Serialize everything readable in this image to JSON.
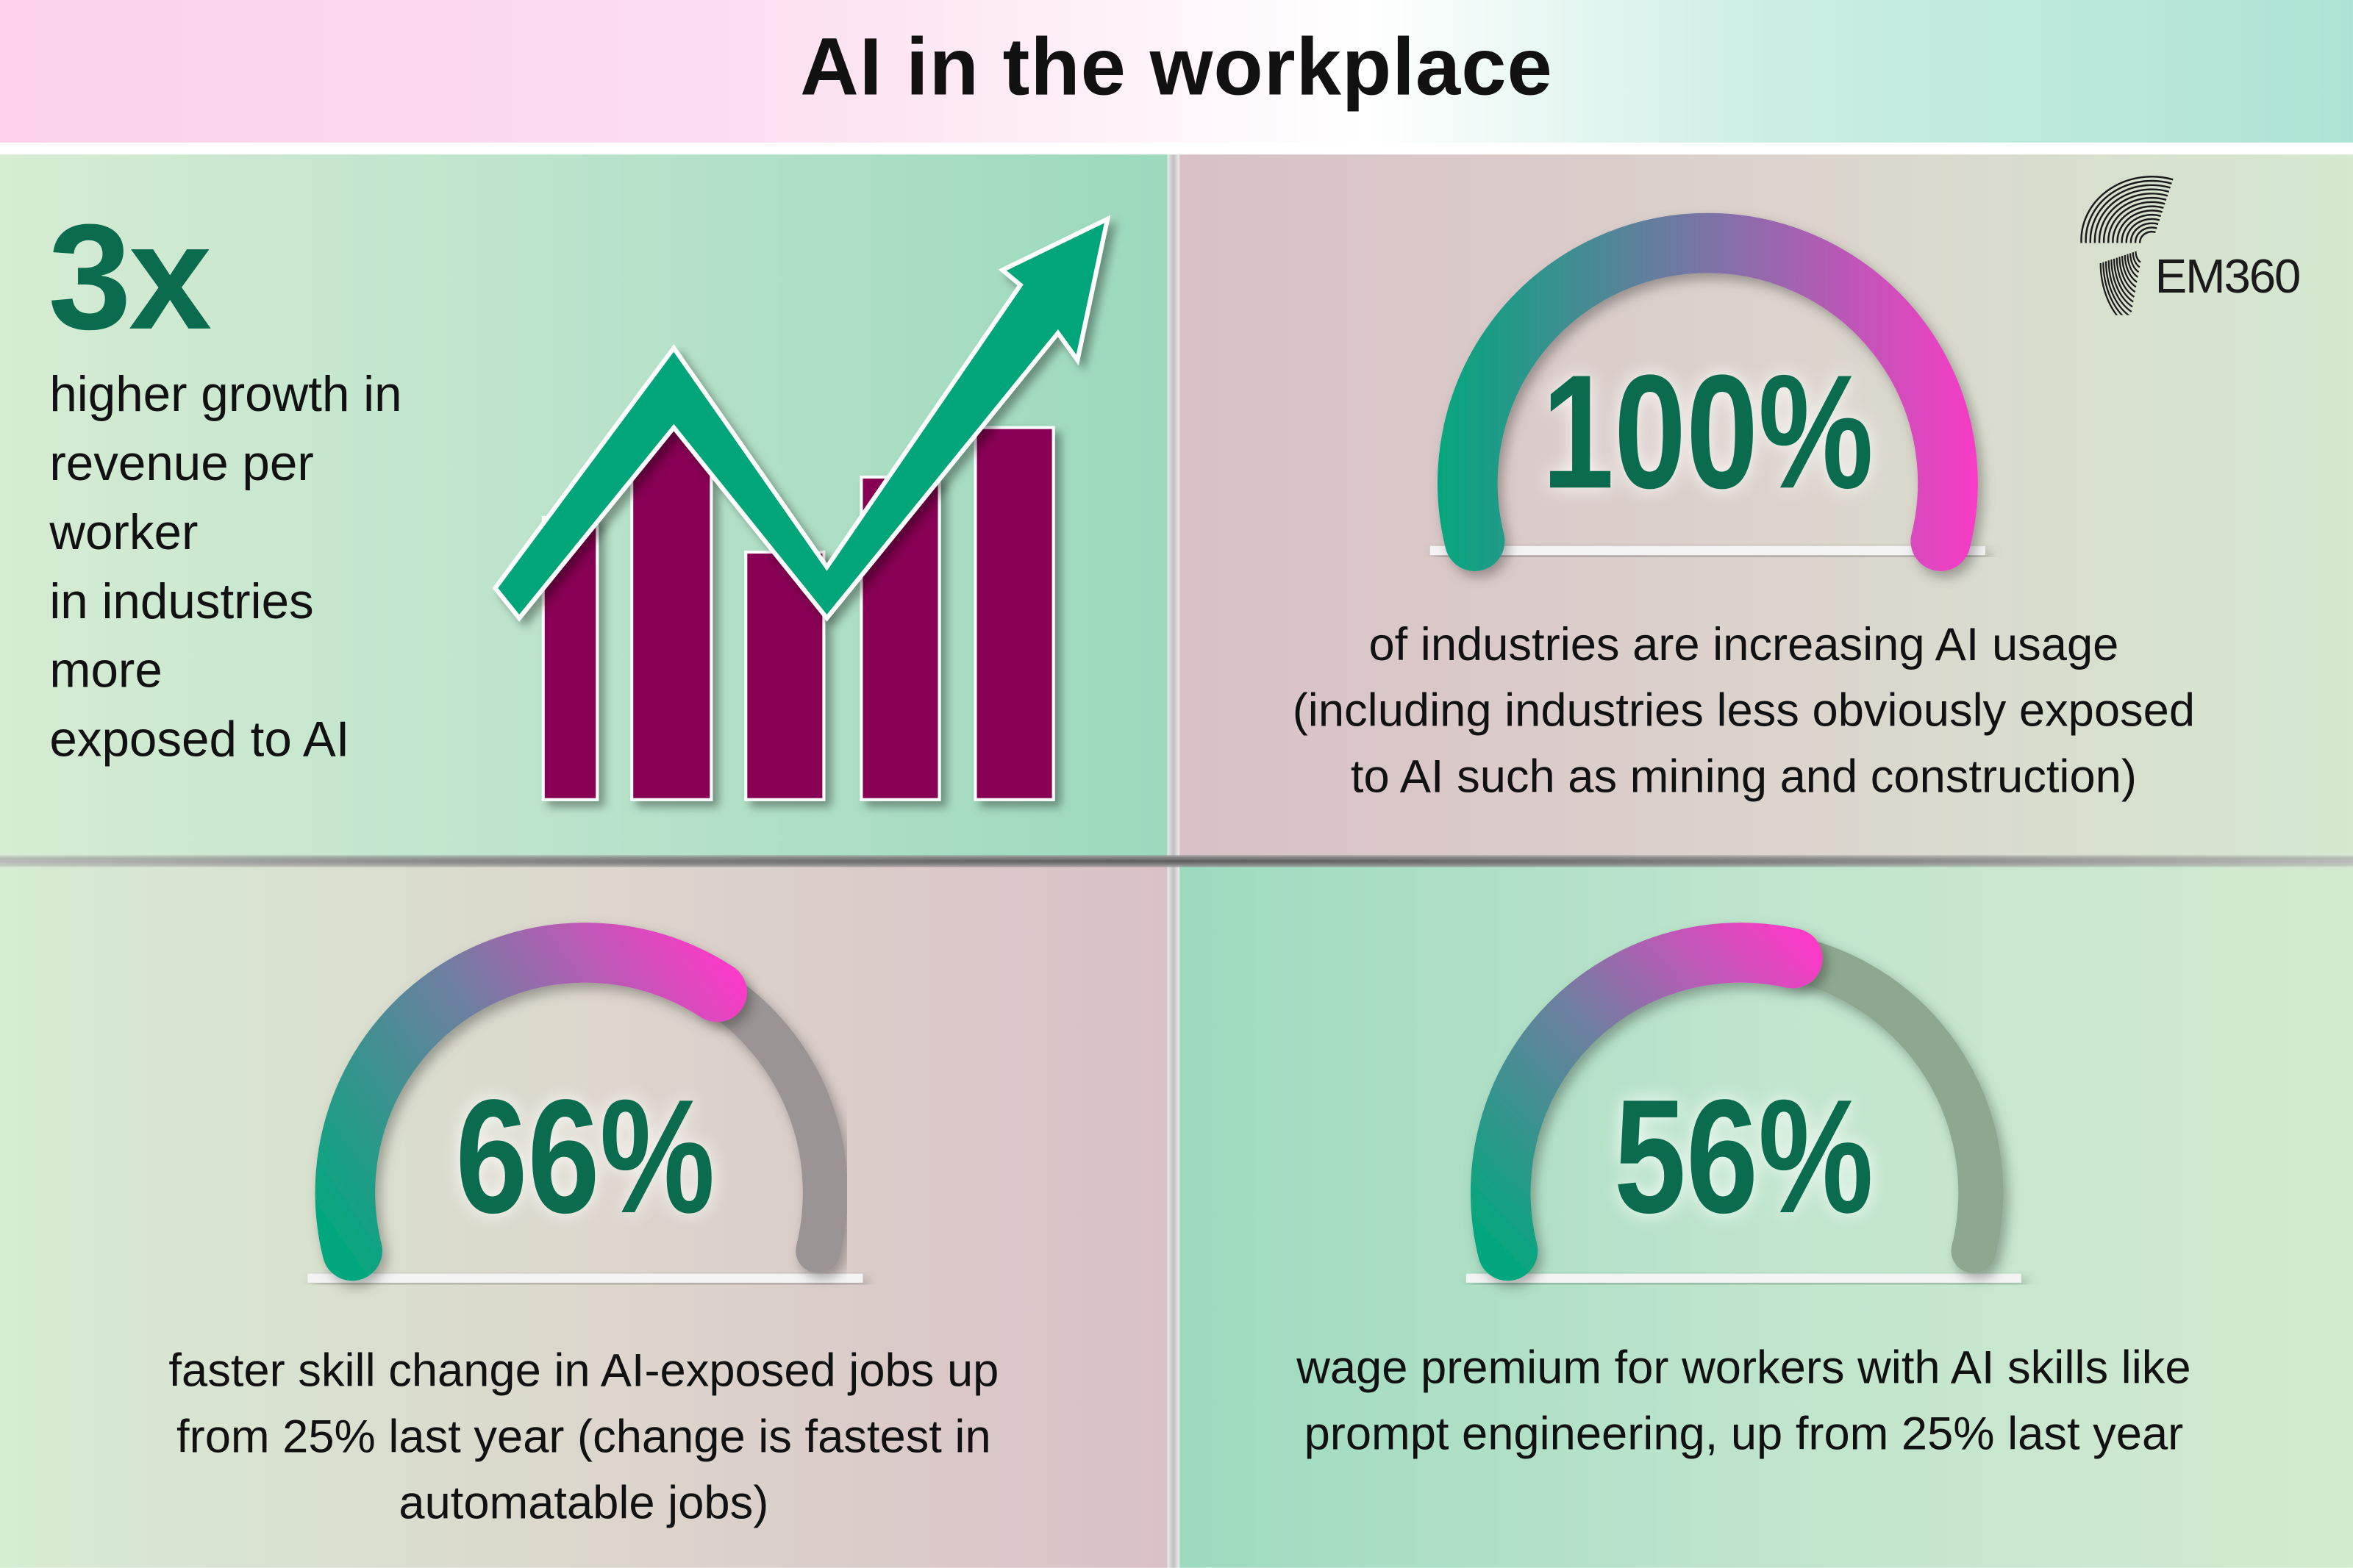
{
  "title": "AI in the workplace",
  "logo": {
    "text": "EM360",
    "icon": "em360-wave-logo-icon"
  },
  "colors": {
    "dark_green": "#0b6b4e",
    "bar_purple": "#870052",
    "arrow_green": "#00a57a",
    "gauge_start": "#06a67e",
    "gauge_end": "#f93bc6",
    "gauge_track_gray": "#9a9594",
    "gauge_track_green": "#8ea890"
  },
  "stat_growth": {
    "value": "3x",
    "lines": [
      "higher growth in",
      "revenue per",
      "worker",
      "in industries",
      "more",
      "exposed to AI"
    ],
    "icon": "rising-bar-chart-arrow-icon"
  },
  "stat_industries": {
    "value": "100%",
    "percent": 100,
    "lines": [
      "of industries are increasing AI usage",
      "(including industries less obviously exposed",
      "to AI such as mining and construction)"
    ]
  },
  "stat_skill": {
    "value": "66%",
    "percent": 66,
    "lines": [
      "faster skill change in AI-exposed jobs up",
      "from 25% last year (change is fastest in",
      "automatable jobs)"
    ]
  },
  "stat_wage": {
    "value": "56%",
    "percent": 56,
    "lines": [
      "wage premium for workers with AI skills like",
      "prompt engineering, up from 25% last year"
    ]
  }
}
